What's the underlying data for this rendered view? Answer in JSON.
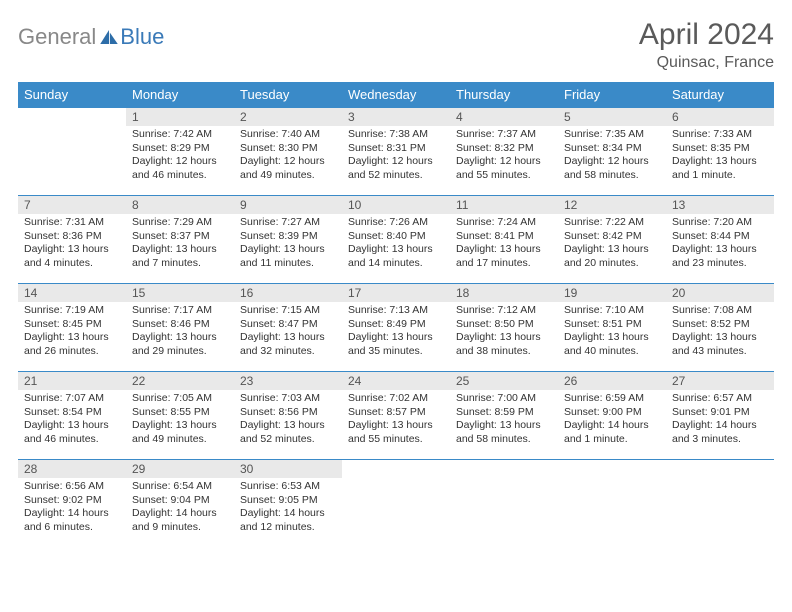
{
  "logo": {
    "text1": "General",
    "text2": "Blue"
  },
  "title": "April 2024",
  "location": "Quinsac, France",
  "colors": {
    "header_bg": "#3a8ac8",
    "header_text": "#ffffff",
    "daynum_bg": "#e9e9e9",
    "border": "#3a8ac8",
    "title_color": "#5a5a5a"
  },
  "weekdays": [
    "Sunday",
    "Monday",
    "Tuesday",
    "Wednesday",
    "Thursday",
    "Friday",
    "Saturday"
  ],
  "layout": {
    "first_weekday_index": 1,
    "days_in_month": 30
  },
  "days": {
    "1": {
      "sunrise": "7:42 AM",
      "sunset": "8:29 PM",
      "daylight": "12 hours and 46 minutes."
    },
    "2": {
      "sunrise": "7:40 AM",
      "sunset": "8:30 PM",
      "daylight": "12 hours and 49 minutes."
    },
    "3": {
      "sunrise": "7:38 AM",
      "sunset": "8:31 PM",
      "daylight": "12 hours and 52 minutes."
    },
    "4": {
      "sunrise": "7:37 AM",
      "sunset": "8:32 PM",
      "daylight": "12 hours and 55 minutes."
    },
    "5": {
      "sunrise": "7:35 AM",
      "sunset": "8:34 PM",
      "daylight": "12 hours and 58 minutes."
    },
    "6": {
      "sunrise": "7:33 AM",
      "sunset": "8:35 PM",
      "daylight": "13 hours and 1 minute."
    },
    "7": {
      "sunrise": "7:31 AM",
      "sunset": "8:36 PM",
      "daylight": "13 hours and 4 minutes."
    },
    "8": {
      "sunrise": "7:29 AM",
      "sunset": "8:37 PM",
      "daylight": "13 hours and 7 minutes."
    },
    "9": {
      "sunrise": "7:27 AM",
      "sunset": "8:39 PM",
      "daylight": "13 hours and 11 minutes."
    },
    "10": {
      "sunrise": "7:26 AM",
      "sunset": "8:40 PM",
      "daylight": "13 hours and 14 minutes."
    },
    "11": {
      "sunrise": "7:24 AM",
      "sunset": "8:41 PM",
      "daylight": "13 hours and 17 minutes."
    },
    "12": {
      "sunrise": "7:22 AM",
      "sunset": "8:42 PM",
      "daylight": "13 hours and 20 minutes."
    },
    "13": {
      "sunrise": "7:20 AM",
      "sunset": "8:44 PM",
      "daylight": "13 hours and 23 minutes."
    },
    "14": {
      "sunrise": "7:19 AM",
      "sunset": "8:45 PM",
      "daylight": "13 hours and 26 minutes."
    },
    "15": {
      "sunrise": "7:17 AM",
      "sunset": "8:46 PM",
      "daylight": "13 hours and 29 minutes."
    },
    "16": {
      "sunrise": "7:15 AM",
      "sunset": "8:47 PM",
      "daylight": "13 hours and 32 minutes."
    },
    "17": {
      "sunrise": "7:13 AM",
      "sunset": "8:49 PM",
      "daylight": "13 hours and 35 minutes."
    },
    "18": {
      "sunrise": "7:12 AM",
      "sunset": "8:50 PM",
      "daylight": "13 hours and 38 minutes."
    },
    "19": {
      "sunrise": "7:10 AM",
      "sunset": "8:51 PM",
      "daylight": "13 hours and 40 minutes."
    },
    "20": {
      "sunrise": "7:08 AM",
      "sunset": "8:52 PM",
      "daylight": "13 hours and 43 minutes."
    },
    "21": {
      "sunrise": "7:07 AM",
      "sunset": "8:54 PM",
      "daylight": "13 hours and 46 minutes."
    },
    "22": {
      "sunrise": "7:05 AM",
      "sunset": "8:55 PM",
      "daylight": "13 hours and 49 minutes."
    },
    "23": {
      "sunrise": "7:03 AM",
      "sunset": "8:56 PM",
      "daylight": "13 hours and 52 minutes."
    },
    "24": {
      "sunrise": "7:02 AM",
      "sunset": "8:57 PM",
      "daylight": "13 hours and 55 minutes."
    },
    "25": {
      "sunrise": "7:00 AM",
      "sunset": "8:59 PM",
      "daylight": "13 hours and 58 minutes."
    },
    "26": {
      "sunrise": "6:59 AM",
      "sunset": "9:00 PM",
      "daylight": "14 hours and 1 minute."
    },
    "27": {
      "sunrise": "6:57 AM",
      "sunset": "9:01 PM",
      "daylight": "14 hours and 3 minutes."
    },
    "28": {
      "sunrise": "6:56 AM",
      "sunset": "9:02 PM",
      "daylight": "14 hours and 6 minutes."
    },
    "29": {
      "sunrise": "6:54 AM",
      "sunset": "9:04 PM",
      "daylight": "14 hours and 9 minutes."
    },
    "30": {
      "sunrise": "6:53 AM",
      "sunset": "9:05 PM",
      "daylight": "14 hours and 12 minutes."
    }
  },
  "labels": {
    "sunrise": "Sunrise:",
    "sunset": "Sunset:",
    "daylight": "Daylight:"
  }
}
